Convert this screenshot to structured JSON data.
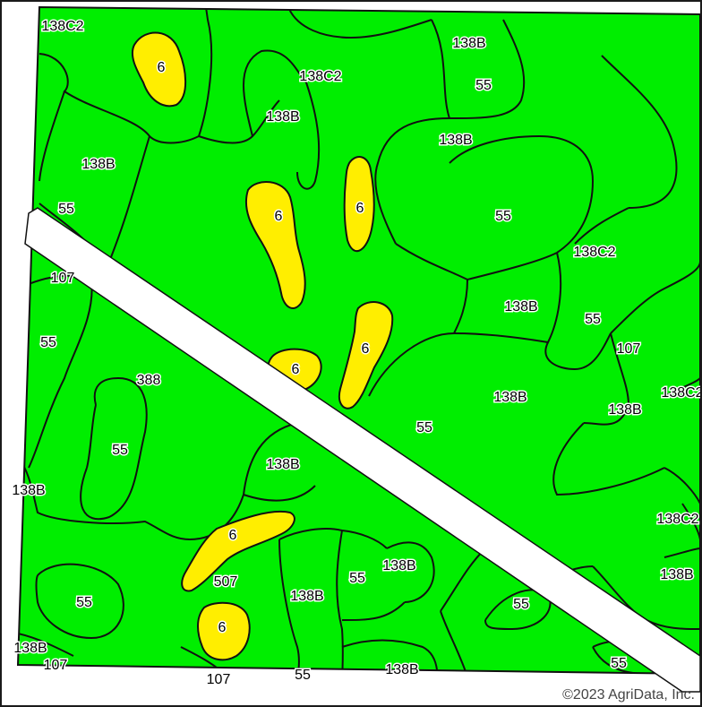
{
  "map": {
    "colors": {
      "field_fill": "#00ee00",
      "pocket_fill": "#ffee00",
      "road_fill": "#ffffff",
      "boundary_stroke": "#111111"
    },
    "copyright": "©2023 AgriData, Inc.",
    "labels": [
      {
        "id": "l1",
        "text": "138C2"
      },
      {
        "id": "l2",
        "text": "6"
      },
      {
        "id": "l3",
        "text": "138B"
      },
      {
        "id": "l4",
        "text": "55"
      },
      {
        "id": "l5",
        "text": "138C2"
      },
      {
        "id": "l6",
        "text": "138B"
      },
      {
        "id": "l7",
        "text": "138B"
      },
      {
        "id": "l8",
        "text": "138B"
      },
      {
        "id": "l9",
        "text": "55"
      },
      {
        "id": "l10",
        "text": "6"
      },
      {
        "id": "l11",
        "text": "6"
      },
      {
        "id": "l12",
        "text": "55"
      },
      {
        "id": "l13",
        "text": "138C2"
      },
      {
        "id": "l14",
        "text": "107"
      },
      {
        "id": "l15",
        "text": "138B"
      },
      {
        "id": "l16",
        "text": "55"
      },
      {
        "id": "l17",
        "text": "55"
      },
      {
        "id": "l18",
        "text": "6"
      },
      {
        "id": "l19",
        "text": "107"
      },
      {
        "id": "l20",
        "text": "6"
      },
      {
        "id": "l21",
        "text": "388"
      },
      {
        "id": "l22",
        "text": "138B"
      },
      {
        "id": "l23",
        "text": "138C2"
      },
      {
        "id": "l24",
        "text": "138B"
      },
      {
        "id": "l25",
        "text": "55"
      },
      {
        "id": "l26",
        "text": "55"
      },
      {
        "id": "l27",
        "text": "138B"
      },
      {
        "id": "l28",
        "text": "138B"
      },
      {
        "id": "l29",
        "text": "138C2"
      },
      {
        "id": "l30",
        "text": "6"
      },
      {
        "id": "l31",
        "text": "507"
      },
      {
        "id": "l32",
        "text": "55"
      },
      {
        "id": "l33",
        "text": "138B"
      },
      {
        "id": "l34",
        "text": "55"
      },
      {
        "id": "l35",
        "text": "138B"
      },
      {
        "id": "l36",
        "text": "138B"
      },
      {
        "id": "l37",
        "text": "55"
      },
      {
        "id": "l38",
        "text": "6"
      },
      {
        "id": "l39",
        "text": "138B"
      },
      {
        "id": "l40",
        "text": "107"
      },
      {
        "id": "l41",
        "text": "107"
      },
      {
        "id": "l42",
        "text": "55"
      },
      {
        "id": "l43",
        "text": "138B"
      },
      {
        "id": "l44",
        "text": "55"
      }
    ]
  }
}
